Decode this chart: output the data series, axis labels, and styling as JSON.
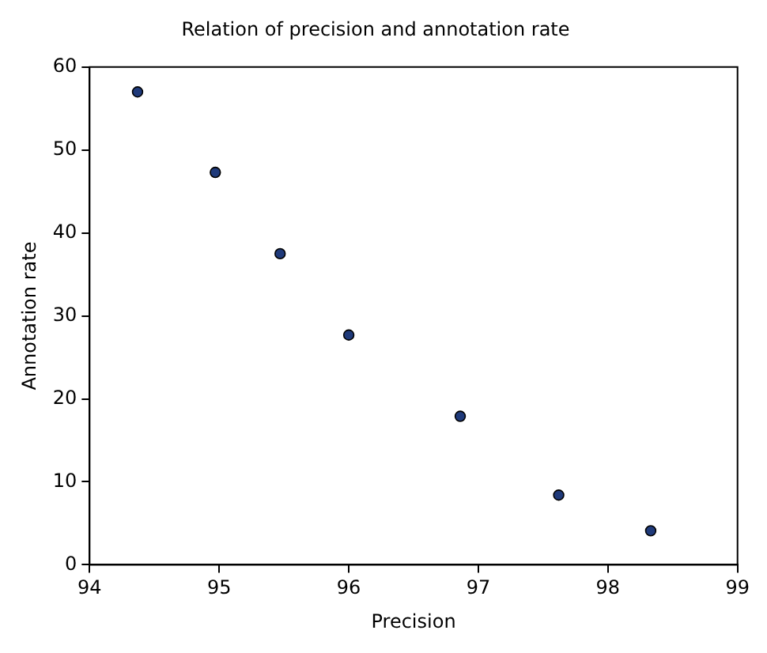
{
  "chart_data": {
    "type": "scatter",
    "title": "Relation of precision and annotation rate",
    "xlabel": "Precision",
    "ylabel": "Annotation rate",
    "x": [
      94.37,
      94.97,
      95.47,
      96.0,
      96.86,
      97.62,
      98.33
    ],
    "series": [
      {
        "color": "#1f3a7a",
        "values": [
          57.0,
          47.3,
          37.5,
          27.7,
          17.9,
          8.4,
          4.1
        ]
      }
    ],
    "xlim": [
      94,
      99
    ],
    "xticks": [
      94,
      95,
      96,
      97,
      98,
      99
    ],
    "ylim": [
      0,
      60
    ],
    "yticks": [
      0,
      10,
      20,
      30,
      40,
      50,
      60
    ],
    "grid": false,
    "legend": false,
    "marker": "circle"
  }
}
